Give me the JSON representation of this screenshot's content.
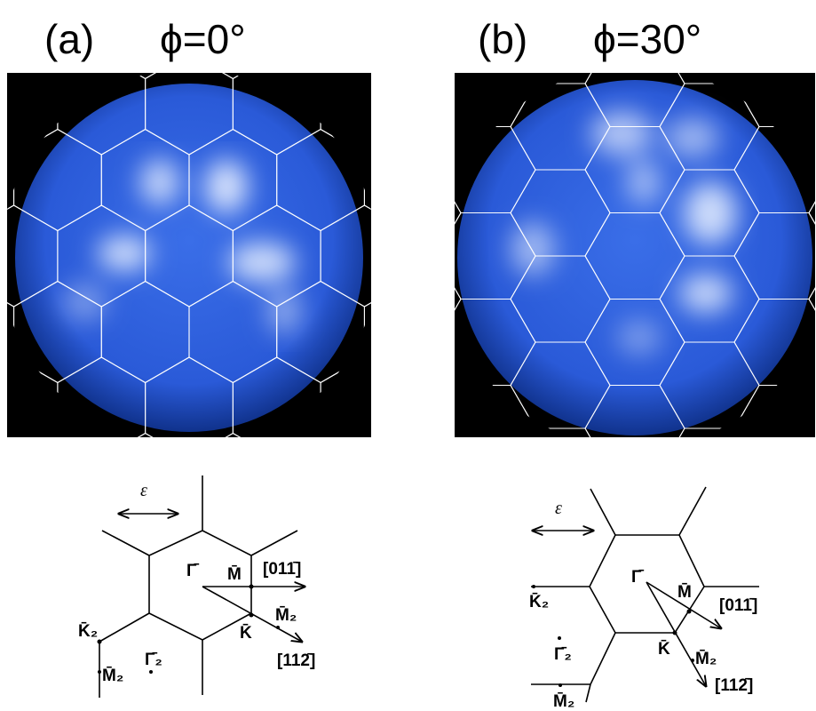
{
  "panels": [
    {
      "label": "(a)",
      "angle": "ϕ=0°"
    },
    {
      "label": "(b)",
      "angle": "ϕ=30°"
    }
  ],
  "diagrams": [
    {
      "polarization": "ε⃗",
      "gamma": "Γ̄",
      "m": "M̄",
      "dir1": "[011̄]",
      "m2a": "M̄₂",
      "k": "K̄",
      "k2": "K̄₂",
      "gamma2": "Γ̄₂",
      "dir2": "[112̄]",
      "m2b": "M̄₂"
    },
    {
      "polarization": "ε⃗",
      "gamma": "Γ̄",
      "m": "M̄",
      "dir1": "[011̄]",
      "k2": "K̄₂",
      "gamma2": "Γ̄₂",
      "k": "K̄",
      "m2a": "M̄₂",
      "dir2": "[112̄]",
      "m2b": "M̄₂"
    }
  ]
}
